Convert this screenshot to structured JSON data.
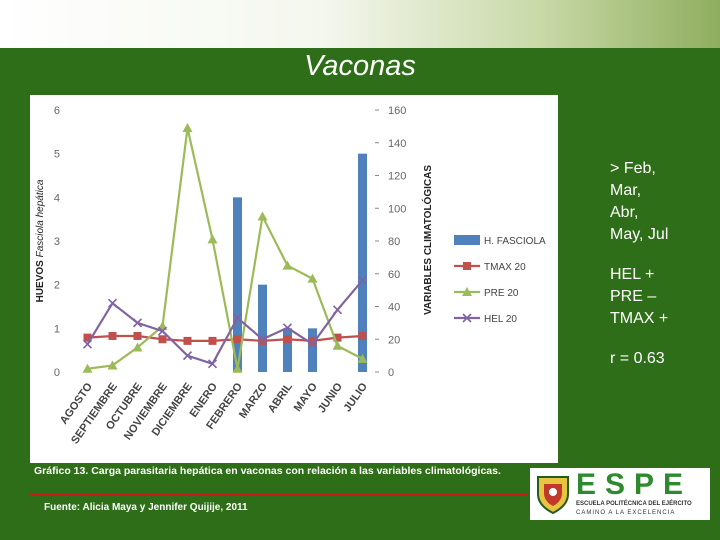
{
  "slide": {
    "title": "Vaconas",
    "side_notes": [
      "> Feb,",
      "Mar,",
      "Abr,",
      "May, Jul",
      "HEL  +",
      "PRE –",
      "TMAX +",
      "r = 0.63"
    ],
    "caption": "Gráfico 13. Carga parasitaria hepática en vaconas con relación a las variables climatológicas.",
    "source": "Fuente: Alicia Maya y Jennifer Quijije, 2011",
    "logo": {
      "word": "ESPE",
      "line1": "ESCUELA POLITÉCNICA DEL EJÉRCITO",
      "line2": "CAMINO A LA EXCELENCIA"
    }
  },
  "chart_data": {
    "type": "bar+line",
    "categories": [
      "AGOSTO",
      "SEPTIEMBRE",
      "OCTUBRE",
      "NOVIEMBRE",
      "DICIEMBRE",
      "ENERO",
      "FEBRERO",
      "MARZO",
      "ABRIL",
      "MAYO",
      "JUNIO",
      "JULIO"
    ],
    "ylabel_left_bold": "HUEVOS",
    "ylabel_left_italic": "Fasciola hepática",
    "ylabel_right": "VARIABLES CLIMATOLÓGICAS",
    "ylim_left": [
      0,
      6
    ],
    "yticks_left": [
      "0",
      "1",
      "2",
      "3",
      "4",
      "5",
      "6"
    ],
    "ylim_right": [
      0,
      160
    ],
    "yticks_right": [
      "0",
      "20",
      "40",
      "60",
      "80",
      "100",
      "120",
      "140",
      "160"
    ],
    "series": [
      {
        "name": "H. FASCIOLA",
        "kind": "bar",
        "axis": "left",
        "color": "#4f81bd",
        "values": [
          0,
          0,
          0,
          0,
          0,
          0,
          4,
          2,
          1,
          1,
          0,
          5
        ]
      },
      {
        "name": "TMAX 20",
        "kind": "line",
        "axis": "right",
        "color": "#c0504d",
        "marker": "square",
        "values": [
          21,
          22,
          22,
          20,
          19,
          19,
          20,
          19,
          20,
          19,
          21,
          22
        ]
      },
      {
        "name": "PRE 20",
        "kind": "line",
        "axis": "right",
        "color": "#9bbb59",
        "marker": "triangle",
        "values": [
          2,
          4,
          15,
          28,
          149,
          81,
          2,
          95,
          65,
          57,
          16,
          8
        ]
      },
      {
        "name": "HEL 20",
        "kind": "line",
        "axis": "right",
        "color": "#8064a2",
        "marker": "x",
        "values": [
          17,
          42,
          30,
          25,
          10,
          5,
          33,
          20,
          27,
          17,
          38,
          56
        ]
      }
    ],
    "legend_position": "right",
    "grid": false
  }
}
